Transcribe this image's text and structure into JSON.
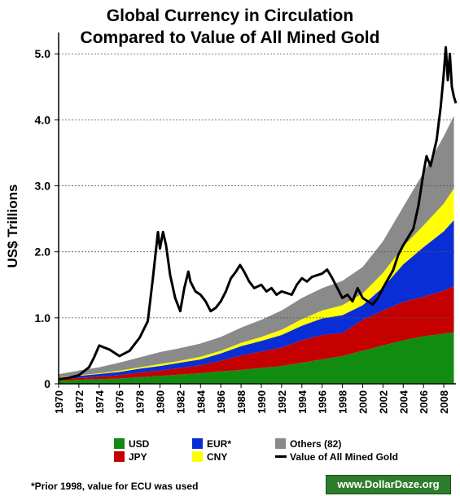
{
  "colors": {
    "usd": "#118c11",
    "jpy": "#c40000",
    "eur": "#0a2ed6",
    "cny": "#ffff00",
    "others": "#8a8a8a",
    "gold_line": "#000000",
    "brand_bg": "#2d7d2d"
  },
  "chart_data": {
    "type": "area",
    "title": "Global Currency in Circulation Compared to Value of All Mined Gold",
    "xlabel": "",
    "ylabel": "US$ Trillions",
    "xlim": [
      1970,
      2009.2
    ],
    "ylim": [
      0,
      5.2
    ],
    "y_ticks": [
      "0",
      "1.0",
      "2.0",
      "3.0",
      "4.0",
      "5.0"
    ],
    "x_ticks": [
      "1970",
      "1972",
      "1974",
      "1976",
      "1978",
      "1980",
      "1982",
      "1984",
      "1986",
      "1988",
      "1990",
      "1992",
      "1994",
      "1996",
      "1998",
      "2000",
      "2002",
      "2004",
      "2006",
      "2008"
    ],
    "grid": "horizontal dashed",
    "stacked": true,
    "x": [
      1970,
      1972,
      1974,
      1976,
      1978,
      1980,
      1982,
      1984,
      1986,
      1988,
      1990,
      1992,
      1994,
      1996,
      1998,
      2000,
      2002,
      2004,
      2006,
      2008,
      2009
    ],
    "series": [
      {
        "name": "USD",
        "color_key": "usd",
        "values": [
          0.05,
          0.06,
          0.07,
          0.08,
          0.1,
          0.12,
          0.14,
          0.16,
          0.19,
          0.21,
          0.24,
          0.27,
          0.32,
          0.37,
          0.42,
          0.5,
          0.58,
          0.66,
          0.72,
          0.76,
          0.78
        ]
      },
      {
        "name": "JPY",
        "color_key": "jpy",
        "values": [
          0.02,
          0.03,
          0.04,
          0.05,
          0.07,
          0.08,
          0.1,
          0.12,
          0.16,
          0.22,
          0.25,
          0.28,
          0.34,
          0.37,
          0.35,
          0.47,
          0.53,
          0.58,
          0.6,
          0.65,
          0.7
        ]
      },
      {
        "name": "EUR*",
        "color_key": "eur",
        "values": [
          0.02,
          0.03,
          0.04,
          0.05,
          0.06,
          0.07,
          0.08,
          0.09,
          0.11,
          0.14,
          0.16,
          0.19,
          0.22,
          0.25,
          0.27,
          0.22,
          0.35,
          0.57,
          0.75,
          0.9,
          1.0
        ]
      },
      {
        "name": "CNY",
        "color_key": "cny",
        "values": [
          0.005,
          0.01,
          0.01,
          0.02,
          0.02,
          0.03,
          0.03,
          0.04,
          0.04,
          0.05,
          0.06,
          0.08,
          0.1,
          0.12,
          0.15,
          0.18,
          0.22,
          0.27,
          0.33,
          0.42,
          0.48
        ]
      },
      {
        "name": "Others (82)",
        "color_key": "others",
        "values": [
          0.05,
          0.07,
          0.09,
          0.12,
          0.15,
          0.18,
          0.19,
          0.2,
          0.21,
          0.23,
          0.26,
          0.29,
          0.32,
          0.34,
          0.37,
          0.4,
          0.48,
          0.6,
          0.8,
          1.02,
          1.1
        ]
      }
    ],
    "gold_series": {
      "name": "Value of All Mined Gold",
      "color_key": "gold_line",
      "x": [
        1970,
        1971,
        1972,
        1973,
        1973.5,
        1974,
        1975,
        1976,
        1977,
        1978,
        1978.8,
        1979.3,
        1979.8,
        1980.0,
        1980.3,
        1980.6,
        1981,
        1981.5,
        1982,
        1982.4,
        1982.8,
        1983,
        1983.5,
        1984,
        1984.5,
        1985,
        1985.5,
        1986,
        1986.5,
        1987,
        1987.5,
        1987.9,
        1988.3,
        1988.8,
        1989.3,
        1990,
        1990.5,
        1991,
        1991.5,
        1992,
        1993,
        1993.5,
        1994,
        1994.5,
        1995,
        1996,
        1996.5,
        1997,
        1997.5,
        1998,
        1998.5,
        1999,
        1999.5,
        2000,
        2001,
        2001.5,
        2002,
        2003,
        2003.5,
        2004,
        2005,
        2005.5,
        2006,
        2006.3,
        2006.7,
        2007,
        2007.3,
        2007.7,
        2008,
        2008.2,
        2008.4,
        2008.6,
        2008.8,
        2009,
        2009.2
      ],
      "values": [
        0.07,
        0.09,
        0.13,
        0.25,
        0.4,
        0.58,
        0.52,
        0.42,
        0.5,
        0.7,
        0.95,
        1.6,
        2.3,
        2.05,
        2.3,
        2.1,
        1.65,
        1.3,
        1.1,
        1.45,
        1.7,
        1.55,
        1.4,
        1.35,
        1.25,
        1.1,
        1.15,
        1.25,
        1.4,
        1.6,
        1.7,
        1.8,
        1.7,
        1.55,
        1.45,
        1.5,
        1.4,
        1.45,
        1.35,
        1.4,
        1.35,
        1.5,
        1.6,
        1.55,
        1.62,
        1.67,
        1.73,
        1.6,
        1.45,
        1.3,
        1.35,
        1.25,
        1.45,
        1.3,
        1.2,
        1.3,
        1.45,
        1.72,
        1.95,
        2.1,
        2.35,
        2.7,
        3.2,
        3.45,
        3.3,
        3.5,
        3.7,
        4.2,
        4.7,
        5.1,
        4.6,
        5.0,
        4.5,
        4.35,
        4.25
      ]
    }
  },
  "legend": {
    "usd": "USD",
    "jpy": "JPY",
    "eur": "EUR*",
    "cny": "CNY",
    "others": "Others (82)",
    "gold": "Value of All Mined Gold"
  },
  "title_line1": "Global Currency in Circulation",
  "title_line2": "Compared to Value of All Mined Gold",
  "footnote": "*Prior 1998, value for ECU was used",
  "brand": "www.DollarDaze.org"
}
